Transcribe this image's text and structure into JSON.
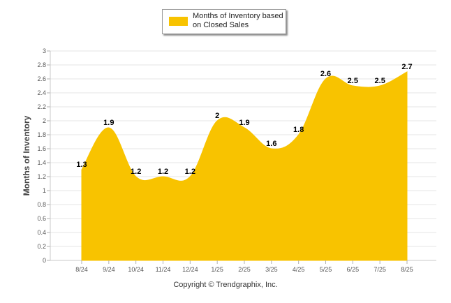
{
  "chart_data": {
    "type": "area",
    "categories": [
      "8/24",
      "9/24",
      "10/24",
      "11/24",
      "12/24",
      "1/25",
      "2/25",
      "3/25",
      "4/25",
      "5/25",
      "6/25",
      "7/25",
      "8/25"
    ],
    "series": [
      {
        "name": "Months of Inventory based on Closed Sales",
        "values": [
          1.3,
          1.9,
          1.2,
          1.2,
          1.2,
          2,
          1.9,
          1.6,
          1.8,
          2.6,
          2.5,
          2.5,
          2.7
        ],
        "labels": [
          "1.3",
          "1.9",
          "1.2",
          "1.2",
          "1.2",
          "2",
          "1.9",
          "1.6",
          "1.8",
          "2.6",
          "2.5",
          "2.5",
          "2.7"
        ]
      }
    ],
    "title": "",
    "xlabel": "",
    "ylabel": "Months of Inventory",
    "ylim": [
      0,
      3
    ],
    "yticks": [
      "0",
      "0.2",
      "0.4",
      "0.6",
      "0.8",
      "1",
      "1.2",
      "1.4",
      "1.6",
      "1.8",
      "2",
      "2.2",
      "2.4",
      "2.6",
      "2.8",
      "3"
    ],
    "grid": true,
    "legend_position": "top-center",
    "color": "#f8c300"
  },
  "footer": {
    "copyright": "Copyright © Trendgraphix, Inc."
  }
}
